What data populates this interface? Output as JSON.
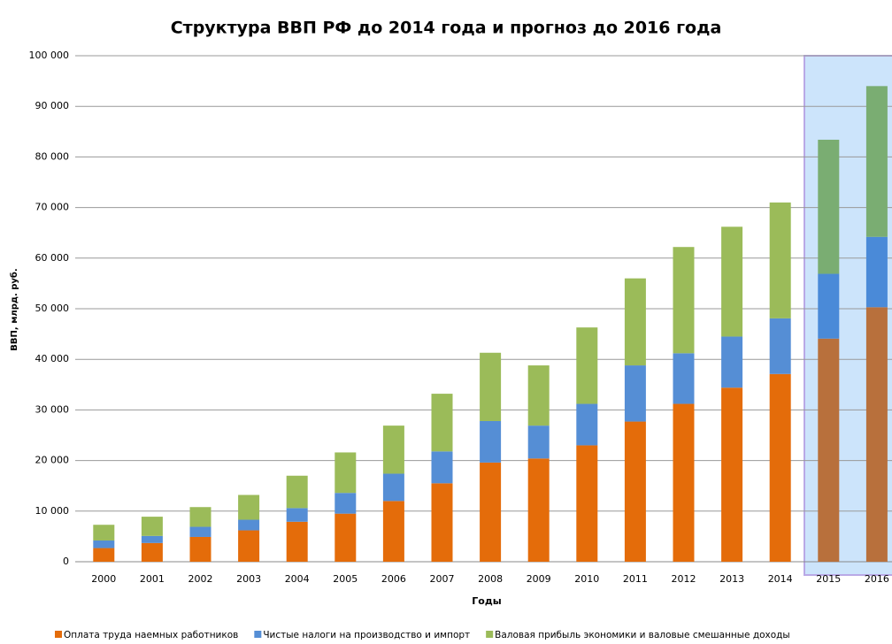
{
  "chart_data": {
    "type": "stacked_bar",
    "title": "Структура ВВП РФ до 2014 года и прогноз до 2016 года",
    "x_label": "Годы",
    "y_label": "ВВП, млрд. руб.",
    "categories": [
      "2000",
      "2001",
      "2002",
      "2003",
      "2004",
      "2005",
      "2006",
      "2007",
      "2008",
      "2009",
      "2010",
      "2011",
      "2012",
      "2013",
      "2014",
      "2015",
      "2016"
    ],
    "series": [
      {
        "name": "Оплата труда наемных работников",
        "color": "#e46c0a",
        "highlight_color": "#b8703c",
        "values": [
          2700,
          3700,
          4900,
          6200,
          7900,
          9500,
          12000,
          15500,
          19600,
          20400,
          23000,
          27700,
          31200,
          34400,
          37100,
          44100,
          50300
        ]
      },
      {
        "name": "Чистые налоги на производство и импорт",
        "color": "#558ed5",
        "highlight_color": "#4a8ad8",
        "values": [
          1500,
          1400,
          2000,
          2100,
          2700,
          4100,
          5400,
          6300,
          8200,
          6500,
          8200,
          11100,
          10000,
          10100,
          11000,
          12800,
          13900
        ]
      },
      {
        "name": "Валовая прибыль экономики и валовые смешанные доходы",
        "color": "#9bbb59",
        "highlight_color": "#7aad72",
        "values": [
          3100,
          3800,
          3900,
          4900,
          6400,
          8000,
          9500,
          11400,
          13500,
          11900,
          15100,
          17200,
          21000,
          21700,
          22900,
          26500,
          29800
        ]
      }
    ],
    "highlight": {
      "from": 15,
      "fill": "#cce4fb",
      "border": "#b9a9e6"
    },
    "ylim": [
      0,
      100000
    ],
    "yticks": [
      0,
      {
        "value": 10000,
        "label": "10 000"
      },
      {
        "value": 20000,
        "label": "20 000"
      },
      {
        "value": 30000,
        "label": "30 000"
      },
      {
        "value": 40000,
        "label": "40 000"
      },
      {
        "value": 50000,
        "label": "50 000"
      },
      {
        "value": 60000,
        "label": "60 000"
      },
      {
        "value": 70000,
        "label": "70 000"
      },
      {
        "value": 80000,
        "label": "80 000"
      },
      {
        "value": 90000,
        "label": "90 000"
      },
      {
        "value": 100000,
        "label": "100 000"
      }
    ],
    "grid": true,
    "legend": "bottom"
  }
}
